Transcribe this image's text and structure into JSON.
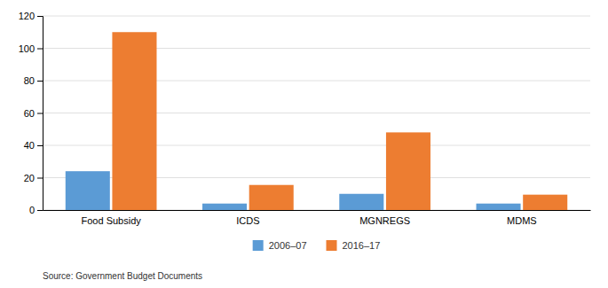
{
  "chart_data": {
    "type": "bar",
    "categories": [
      "Food Subsidy",
      "ICDS",
      "MGNREGS",
      "MDMS"
    ],
    "series": [
      {
        "name": "2006–07",
        "color": "#5b9bd5",
        "values": [
          24,
          4,
          10,
          4
        ]
      },
      {
        "name": "2016–17",
        "color": "#ed7d31",
        "values": [
          110,
          15.5,
          48,
          9.5
        ]
      }
    ],
    "ylim": [
      0,
      120
    ],
    "yticks": [
      0,
      20,
      40,
      60,
      80,
      100,
      120
    ],
    "grid": true,
    "legend": "bottom",
    "annotations": [
      "Source: Government Budget Documents"
    ]
  }
}
